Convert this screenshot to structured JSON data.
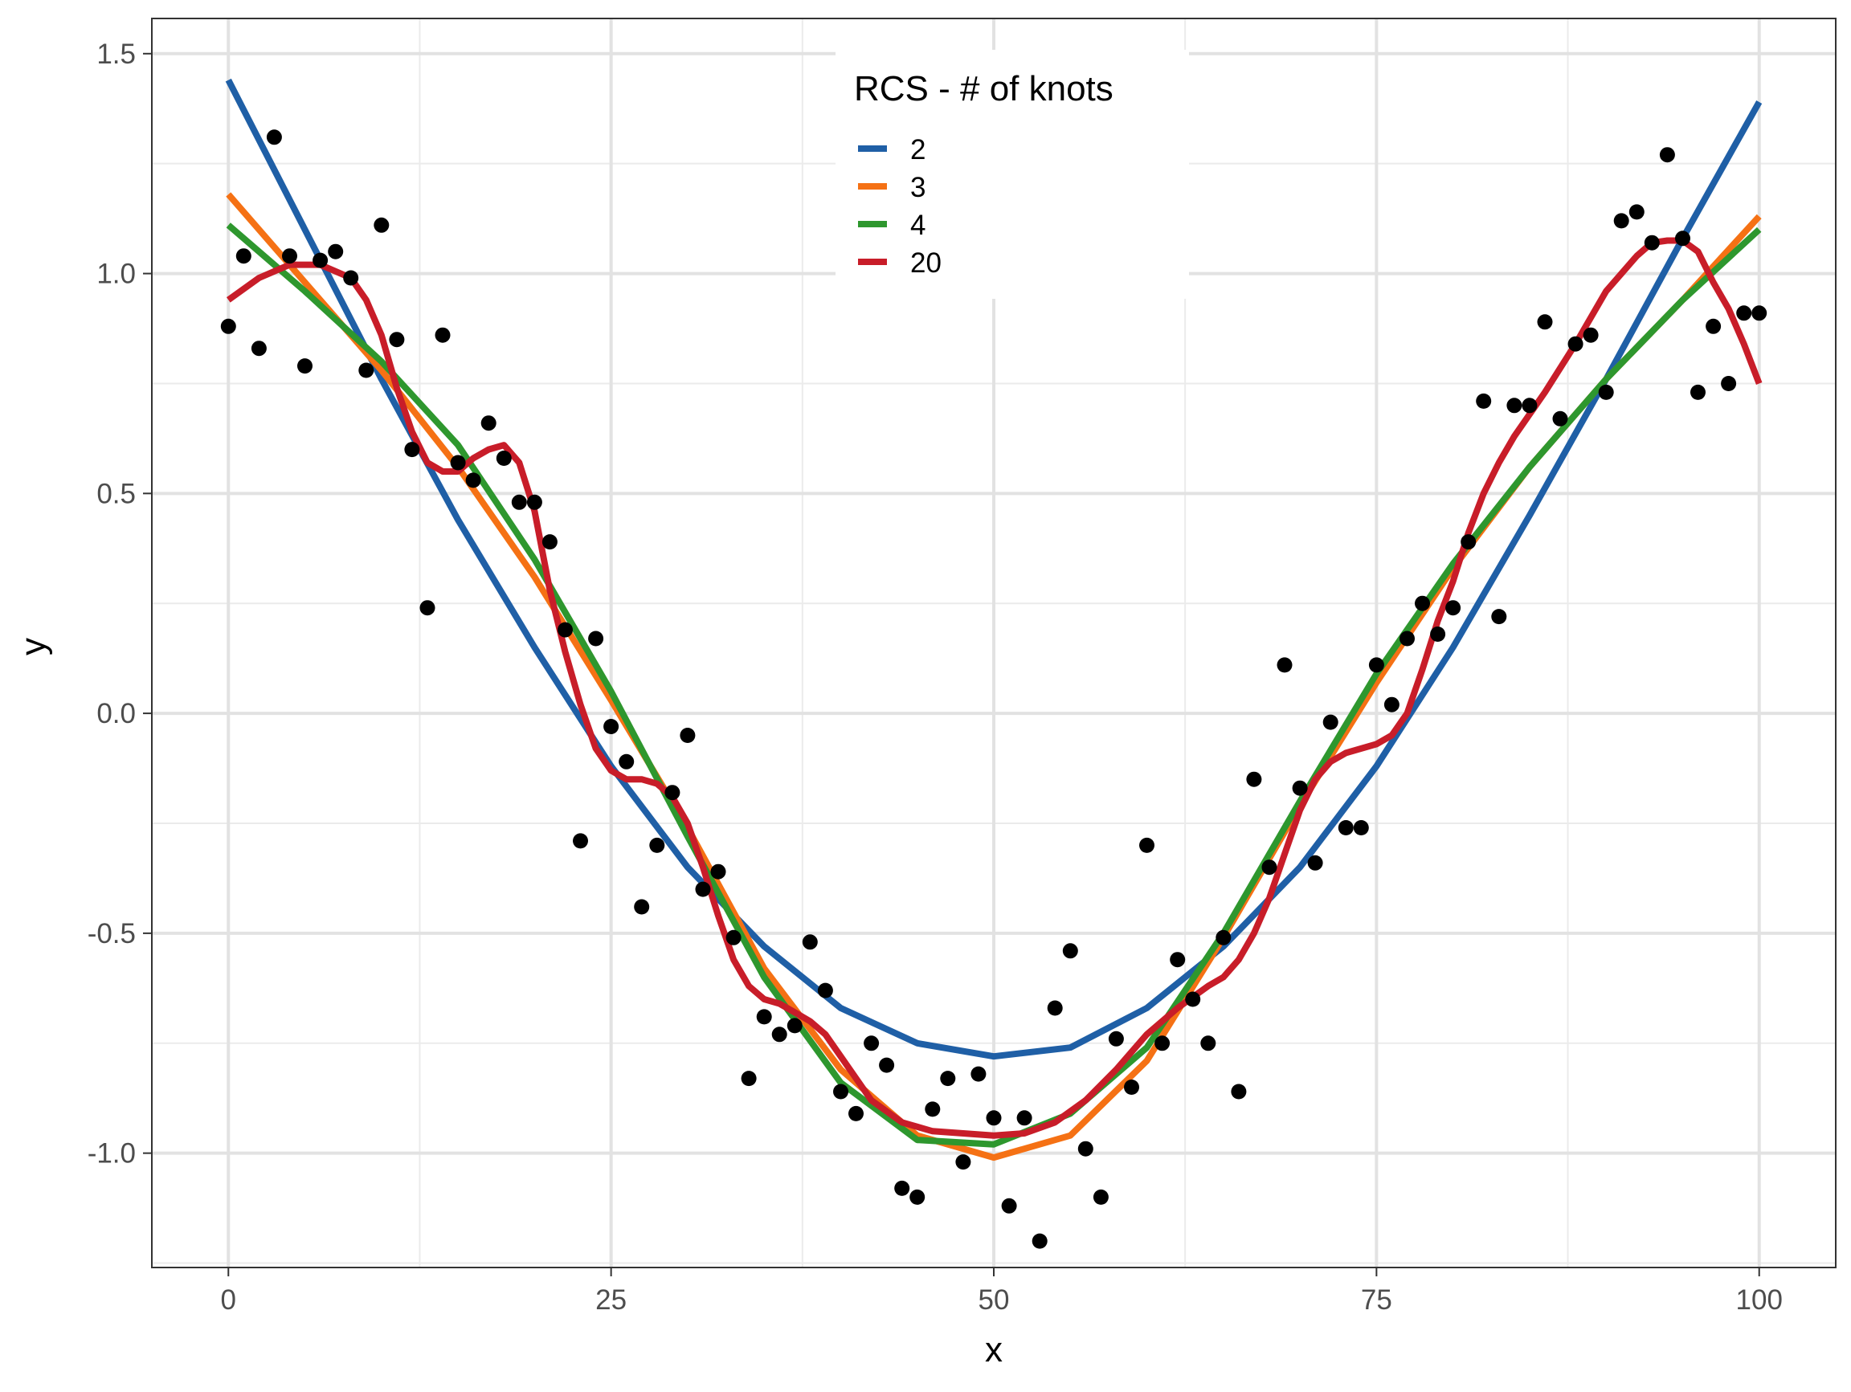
{
  "chart_data": {
    "type": "scatter",
    "title": "",
    "xlabel": "x",
    "ylabel": "y",
    "xlim": [
      -5,
      105
    ],
    "ylim": [
      -1.26,
      1.58
    ],
    "xticks": [
      0,
      25,
      50,
      75,
      100
    ],
    "xtick_labels": [
      "0",
      "25",
      "50",
      "75",
      "100"
    ],
    "yticks": [
      -1.0,
      -0.5,
      0.0,
      0.5,
      1.0,
      1.5
    ],
    "ytick_labels": [
      "-1.0",
      "-0.5",
      "0.0",
      "0.5",
      "1.0",
      "1.5"
    ],
    "grid": true,
    "legend": {
      "title": "RCS - # of knots",
      "placement": "top-center"
    },
    "points": {
      "color": "#000000",
      "x": [
        0,
        1,
        2,
        3,
        4,
        5,
        6,
        7,
        8,
        9,
        10,
        11,
        12,
        13,
        14,
        15,
        16,
        17,
        18,
        19,
        20,
        21,
        22,
        23,
        24,
        25,
        26,
        27,
        28,
        29,
        30,
        31,
        32,
        33,
        34,
        35,
        36,
        37,
        38,
        39,
        40,
        41,
        42,
        43,
        44,
        45,
        46,
        47,
        48,
        49,
        50,
        51,
        52,
        53,
        54,
        55,
        56,
        57,
        58,
        59,
        60,
        61,
        62,
        63,
        64,
        65,
        66,
        67,
        68,
        69,
        70,
        71,
        72,
        73,
        74,
        75,
        76,
        77,
        78,
        79,
        80,
        81,
        82,
        83,
        84,
        85,
        86,
        87,
        88,
        89,
        90,
        91,
        92,
        93,
        94,
        95,
        96,
        97,
        98,
        99,
        100
      ],
      "y": [
        0.88,
        1.04,
        0.83,
        1.31,
        1.04,
        0.79,
        1.03,
        1.05,
        0.99,
        0.78,
        1.11,
        0.85,
        0.6,
        0.24,
        0.86,
        0.57,
        0.53,
        0.66,
        0.58,
        0.48,
        0.48,
        0.39,
        0.19,
        -0.29,
        0.17,
        -0.03,
        -0.11,
        -0.44,
        -0.3,
        -0.18,
        -0.05,
        -0.4,
        -0.36,
        -0.51,
        -0.83,
        -0.69,
        -0.73,
        -0.71,
        -0.52,
        -0.63,
        -0.86,
        -0.91,
        -0.75,
        -0.8,
        -1.08,
        -1.1,
        -0.9,
        -0.83,
        -1.02,
        -0.82,
        -0.92,
        -1.12,
        -0.92,
        -1.2,
        -0.67,
        -0.54,
        -0.99,
        -1.1,
        -0.74,
        -0.85,
        -0.3,
        -0.75,
        -0.56,
        -0.65,
        -0.75,
        -0.51,
        -0.86,
        -0.15,
        -0.35,
        0.11,
        -0.17,
        -0.34,
        -0.02,
        -0.26,
        -0.26,
        0.11,
        0.02,
        0.17,
        0.25,
        0.18,
        0.24,
        0.39,
        0.71,
        0.22,
        0.7,
        0.7,
        0.89,
        0.67,
        0.84,
        0.86,
        0.73,
        1.12,
        1.14,
        1.07,
        1.27,
        1.08,
        0.73,
        0.88,
        0.75,
        0.91,
        0.91
      ]
    },
    "series": [
      {
        "name": "2",
        "color": "#1F5FA6",
        "x": [
          0,
          5,
          10,
          15,
          20,
          25,
          30,
          35,
          40,
          45,
          50,
          55,
          60,
          65,
          70,
          75,
          80,
          85,
          90,
          95,
          100
        ],
        "y": [
          1.44,
          1.1,
          0.76,
          0.44,
          0.15,
          -0.12,
          -0.35,
          -0.53,
          -0.67,
          -0.75,
          -0.78,
          -0.76,
          -0.67,
          -0.53,
          -0.35,
          -0.12,
          0.15,
          0.45,
          0.76,
          1.08,
          1.39
        ]
      },
      {
        "name": "3",
        "color": "#F57114",
        "x": [
          0,
          5,
          10,
          15,
          20,
          25,
          30,
          35,
          40,
          45,
          50,
          55,
          60,
          65,
          70,
          75,
          80,
          85,
          90,
          95,
          100
        ],
        "y": [
          1.18,
          0.98,
          0.78,
          0.56,
          0.31,
          0.03,
          -0.26,
          -0.58,
          -0.81,
          -0.96,
          -1.01,
          -0.96,
          -0.79,
          -0.51,
          -0.21,
          0.07,
          0.33,
          0.56,
          0.76,
          0.94,
          1.13
        ]
      },
      {
        "name": "4",
        "color": "#2E972E",
        "x": [
          0,
          5,
          10,
          15,
          20,
          25,
          30,
          35,
          40,
          45,
          50,
          55,
          60,
          65,
          70,
          75,
          80,
          85,
          90,
          95,
          100
        ],
        "y": [
          1.11,
          0.96,
          0.8,
          0.61,
          0.35,
          0.05,
          -0.28,
          -0.6,
          -0.84,
          -0.97,
          -0.98,
          -0.91,
          -0.76,
          -0.5,
          -0.2,
          0.09,
          0.34,
          0.56,
          0.76,
          0.94,
          1.1
        ]
      },
      {
        "name": "20",
        "color": "#C81D29",
        "x": [
          0,
          2,
          4,
          6,
          8,
          9,
          10,
          11,
          12,
          13,
          14,
          15,
          16,
          17,
          18,
          19,
          20,
          21,
          22,
          23,
          24,
          25,
          26,
          27,
          28,
          29,
          30,
          31,
          32,
          33,
          34,
          35,
          36,
          37,
          38,
          39,
          40,
          42,
          44,
          46,
          48,
          50,
          52,
          54,
          56,
          58,
          60,
          62,
          64,
          65,
          66,
          67,
          68,
          69,
          70,
          71,
          72,
          73,
          74,
          75,
          76,
          77,
          78,
          79,
          80,
          81,
          82,
          83,
          84,
          86,
          88,
          90,
          92,
          93,
          94,
          95,
          96,
          97,
          98,
          99,
          100
        ],
        "y": [
          0.94,
          0.99,
          1.02,
          1.02,
          0.99,
          0.94,
          0.86,
          0.74,
          0.64,
          0.57,
          0.55,
          0.55,
          0.58,
          0.6,
          0.61,
          0.57,
          0.46,
          0.28,
          0.14,
          0.02,
          -0.08,
          -0.13,
          -0.15,
          -0.15,
          -0.16,
          -0.19,
          -0.25,
          -0.35,
          -0.46,
          -0.56,
          -0.62,
          -0.65,
          -0.66,
          -0.68,
          -0.7,
          -0.73,
          -0.78,
          -0.88,
          -0.93,
          -0.95,
          -0.955,
          -0.96,
          -0.955,
          -0.93,
          -0.88,
          -0.81,
          -0.73,
          -0.67,
          -0.62,
          -0.6,
          -0.56,
          -0.5,
          -0.42,
          -0.32,
          -0.22,
          -0.15,
          -0.11,
          -0.09,
          -0.08,
          -0.07,
          -0.05,
          0.0,
          0.1,
          0.21,
          0.3,
          0.41,
          0.5,
          0.57,
          0.63,
          0.73,
          0.84,
          0.96,
          1.04,
          1.07,
          1.075,
          1.075,
          1.05,
          0.98,
          0.92,
          0.84,
          0.75
        ]
      }
    ]
  }
}
